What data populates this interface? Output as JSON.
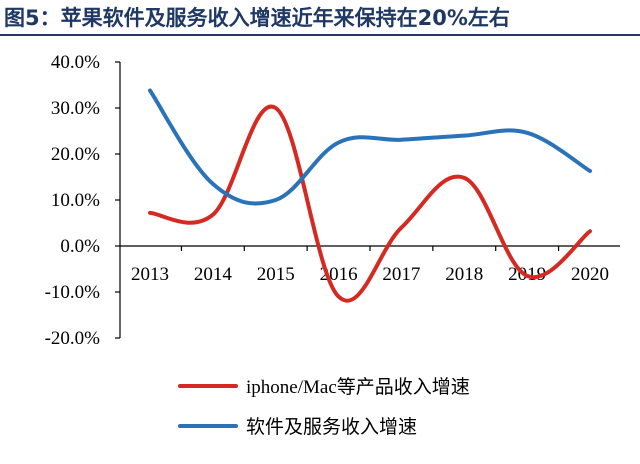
{
  "title": "图5：苹果软件及服务收入增速近年来保持在20%左右",
  "chart_data": {
    "type": "line",
    "title": "图5：苹果软件及服务收入增速近年来保持在20%左右",
    "xlabel": "",
    "ylabel": "",
    "categories": [
      "2013",
      "2014",
      "2015",
      "2016",
      "2017",
      "2018",
      "2019",
      "2020"
    ],
    "ylim": [
      -20,
      40
    ],
    "yticks": [
      "40.0%",
      "30.0%",
      "20.0%",
      "10.0%",
      "0.0%",
      "-10.0%",
      "-20.0%"
    ],
    "grid": false,
    "legend_position": "bottom",
    "smooth": true,
    "series": [
      {
        "name": "iphone/Mac等产品收入增速",
        "color": "#d42a22",
        "values": [
          7.2,
          6.8,
          30.0,
          -11.0,
          4.0,
          14.8,
          -6.5,
          3.2
        ]
      },
      {
        "name": "软件及服务收入增速",
        "color": "#2a73b8",
        "values": [
          33.8,
          13.5,
          10.0,
          22.5,
          23.1,
          24.0,
          24.6,
          16.3
        ]
      }
    ]
  }
}
